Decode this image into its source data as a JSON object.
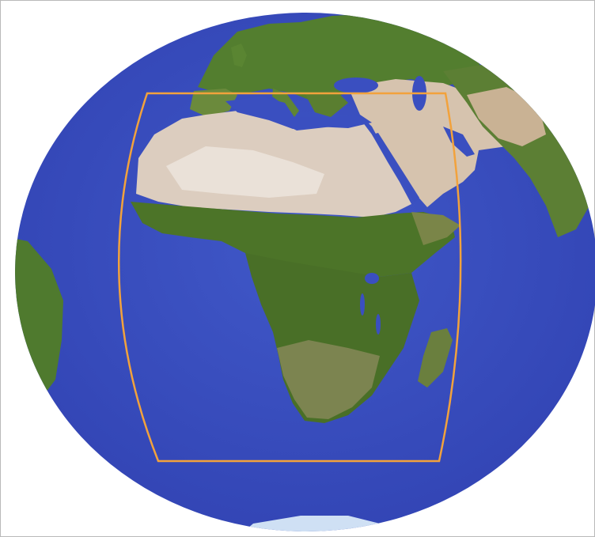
{
  "map": {
    "projection": "orthographic-globe",
    "region_box_color": "#f2a23c",
    "colors": {
      "ocean": "#3a4fc0",
      "ocean_deep": "#2f3fb0",
      "desert": "#d9cbbd",
      "desert_light": "#ece3da",
      "vegetation": "#4f7a2c",
      "vegetation_dark": "#3e6524",
      "savanna": "#7f8a4a",
      "ice": "#cfe0f4",
      "frame_border": "#b9b9b9"
    }
  }
}
